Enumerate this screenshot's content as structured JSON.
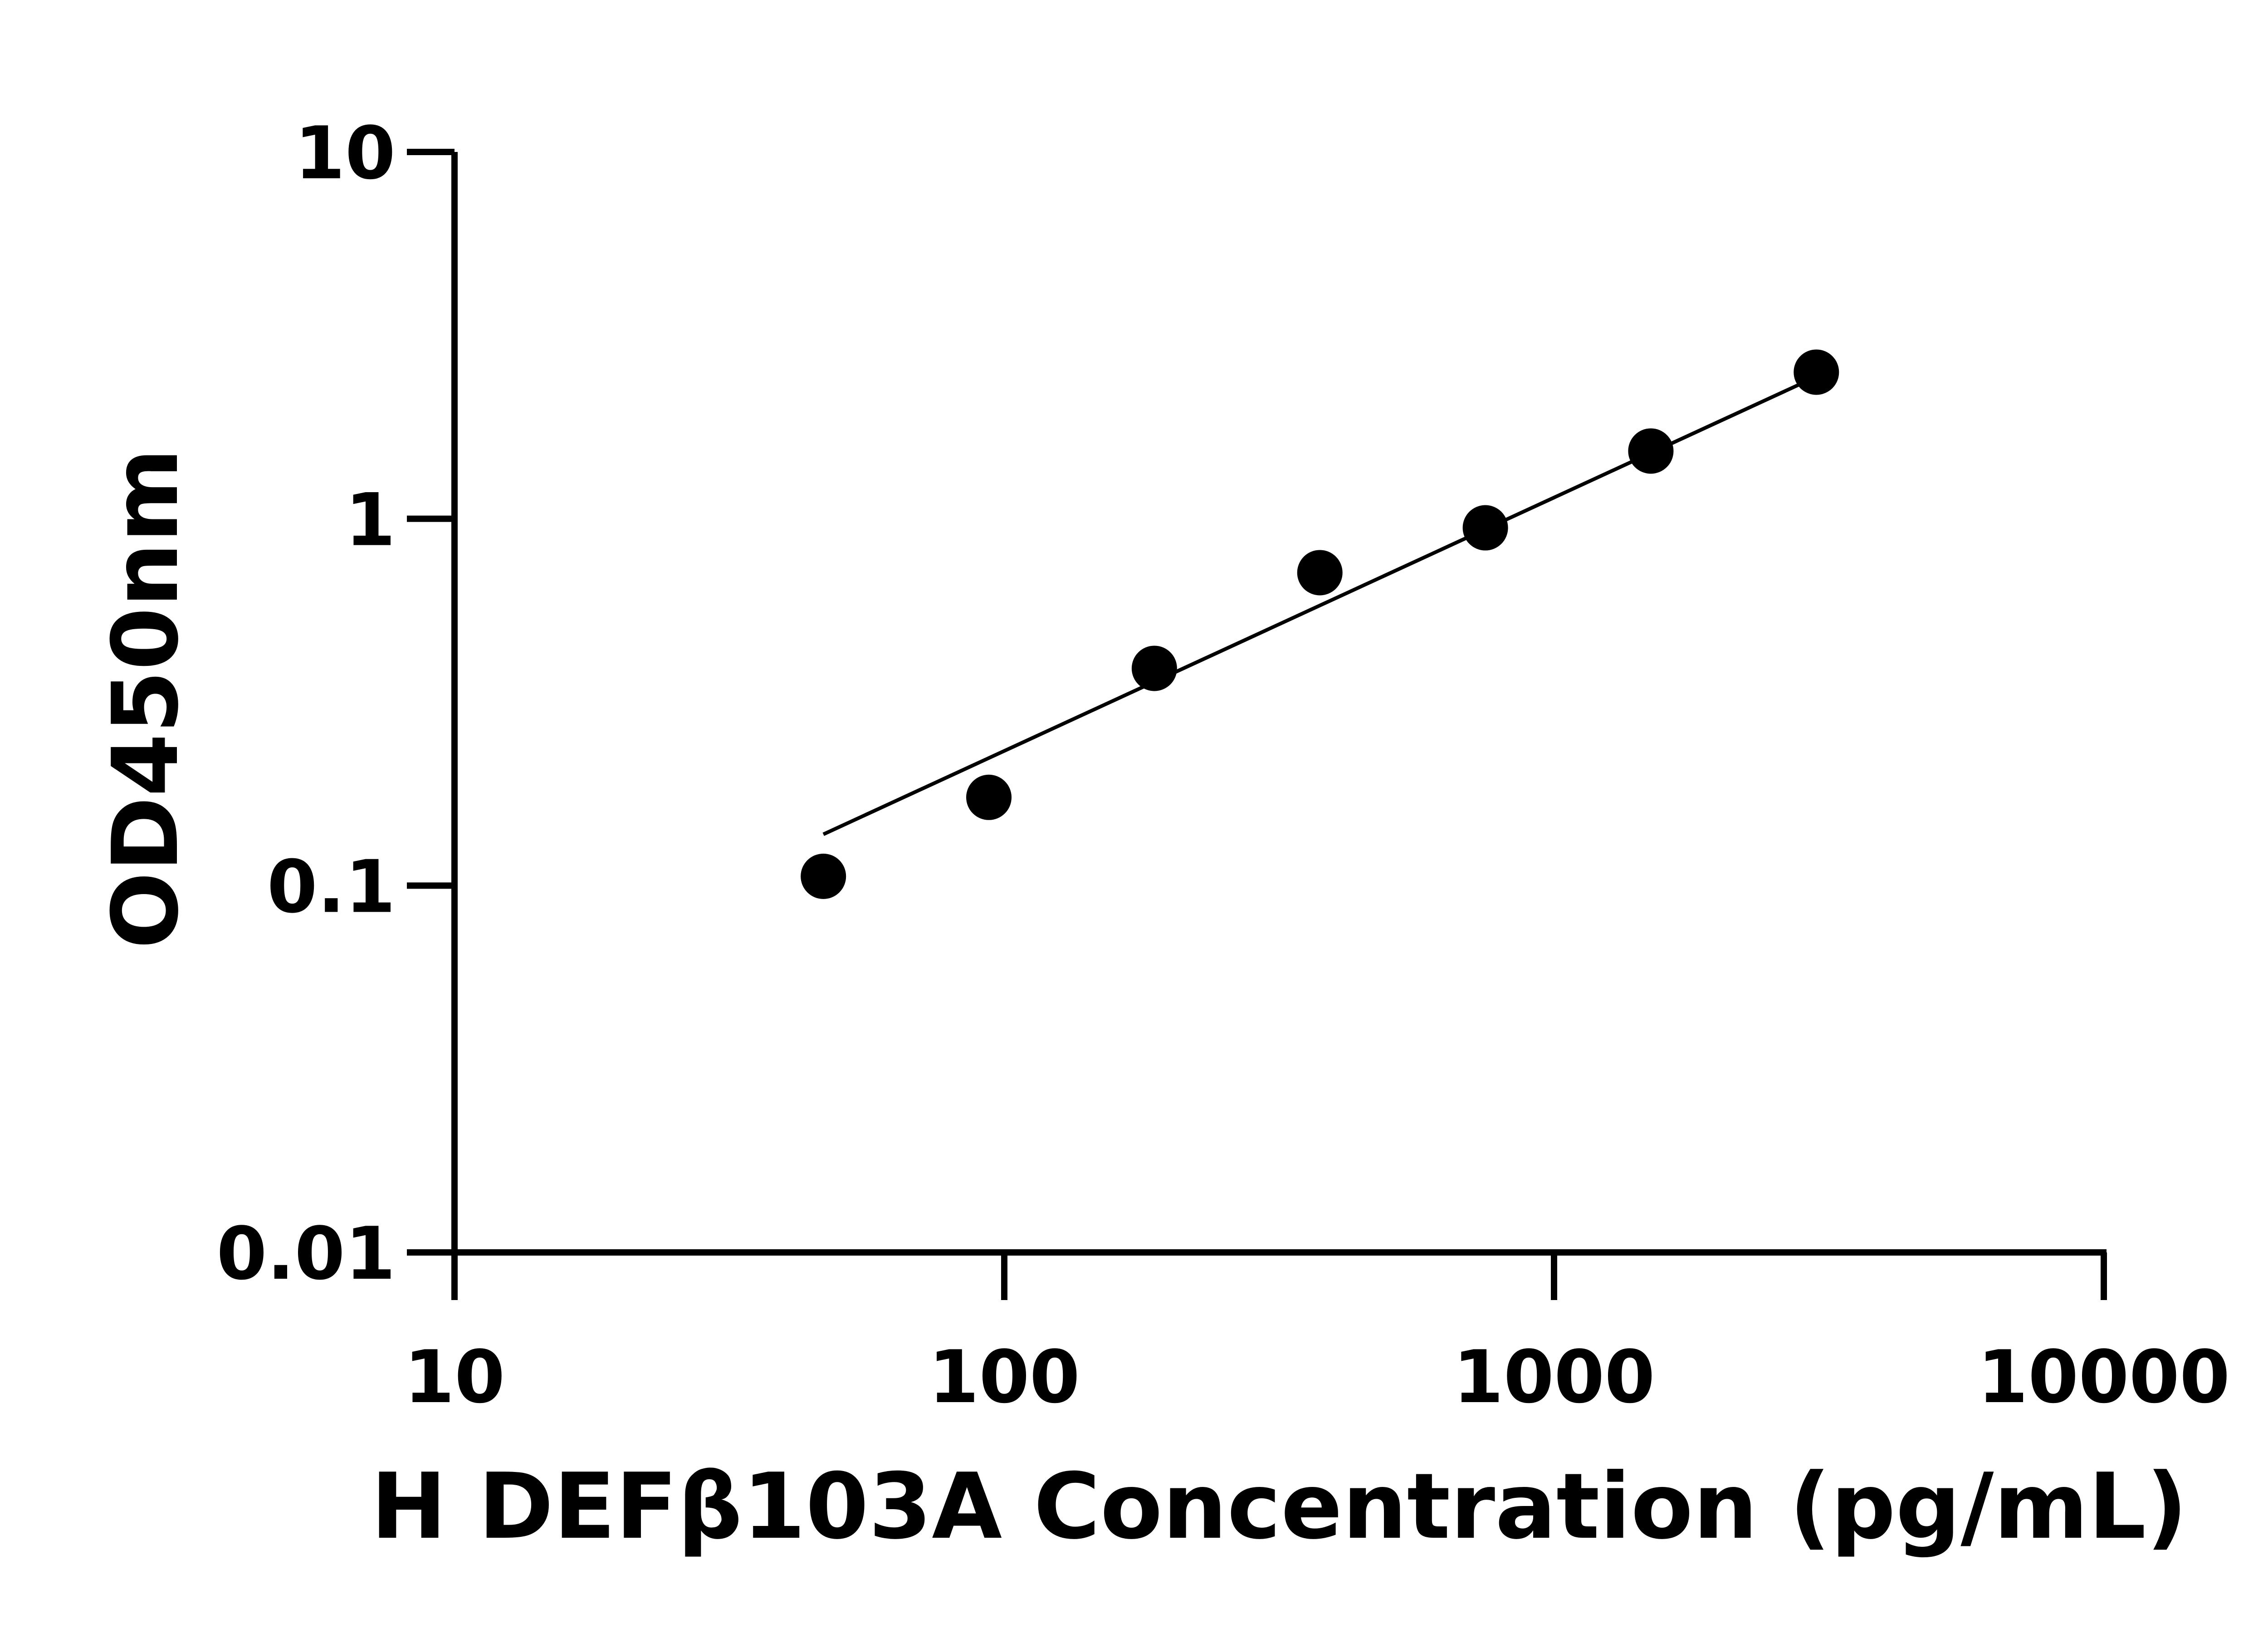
{
  "chart_data": {
    "type": "scatter",
    "title": "",
    "xlabel": "H DEFβ103A Concentration (pg/mL)",
    "ylabel": "OD450nm",
    "x_scale": "log",
    "y_scale": "log",
    "xlim": [
      10,
      10000
    ],
    "ylim": [
      0.01,
      10
    ],
    "x_ticks": [
      "10",
      "100",
      "1000",
      "10000"
    ],
    "y_ticks": [
      "0.01",
      "0.1",
      "1",
      "10"
    ],
    "grid": false,
    "points": {
      "x": [
        46.875,
        93.75,
        187.5,
        375,
        750,
        1500,
        3000
      ],
      "y": [
        0.106,
        0.174,
        0.391,
        0.713,
        0.945,
        1.53,
        2.51
      ]
    },
    "fit_line": {
      "x": [
        46.875,
        3000
      ],
      "y": [
        0.138,
        2.44
      ]
    },
    "colors": {
      "points": "#000000",
      "line": "#000000"
    }
  }
}
